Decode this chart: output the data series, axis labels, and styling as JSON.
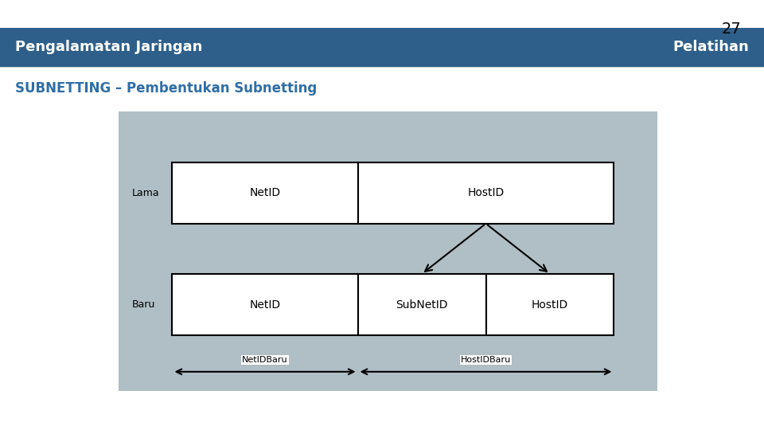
{
  "slide_number": "27",
  "header_text": "Pengalamatan Jaringan",
  "header_right": "Pelatihan",
  "header_bg": "#2E5F8A",
  "subtitle": "SUBNETTING – Pembentukan Subnetting",
  "subtitle_color": "#2E6EA6",
  "bg_color": "#ffffff",
  "diagram_bg": "#B0BEC5",
  "lama_label": "Lama",
  "baru_label": "Baru",
  "top_box1_label": "NetID",
  "top_box2_label": "HostID",
  "bot_box1_label": "NetID",
  "bot_box2_label": "SubNetID",
  "bot_box3_label": "HostID",
  "arrow1_label": "NetIDBaru",
  "arrow2_label": "HostIDBaru"
}
